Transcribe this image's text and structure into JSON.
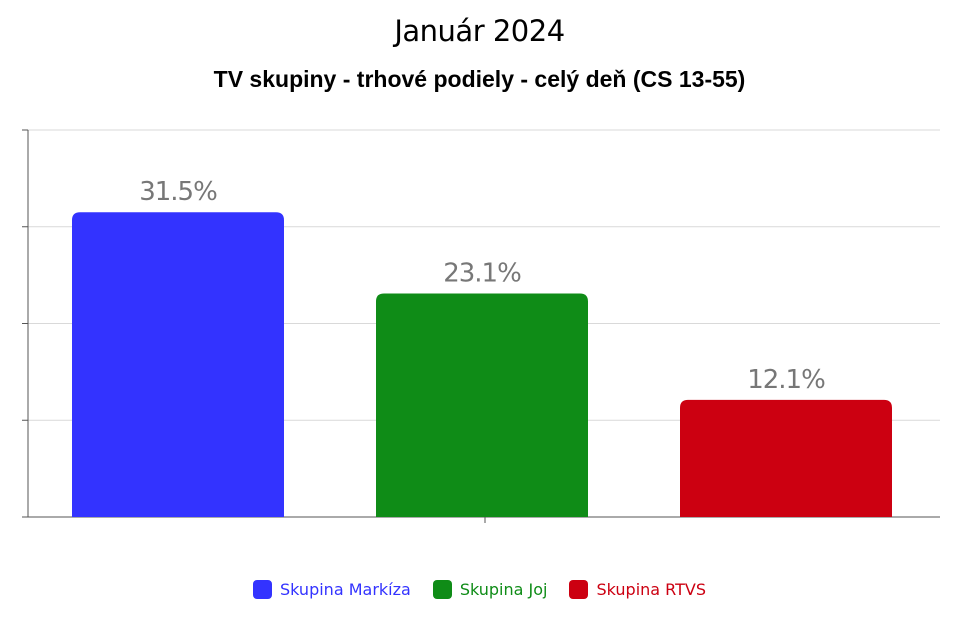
{
  "chart_data": {
    "type": "bar",
    "title": "Január 2024",
    "subtitle": "TV skupiny - trhové podiely - celý deň (CS 13-55)",
    "categories": [
      "Skupina Markíza",
      "Skupina Joj",
      "Skupina RTVS"
    ],
    "values": [
      31.5,
      23.1,
      12.1
    ],
    "value_labels": [
      "31.5%",
      "23.1%",
      "12.1%"
    ],
    "colors": [
      "#3333ff",
      "#0f8c17",
      "#cc0011"
    ],
    "ylim": [
      0,
      40
    ],
    "grid": true,
    "legend_position": "bottom"
  }
}
